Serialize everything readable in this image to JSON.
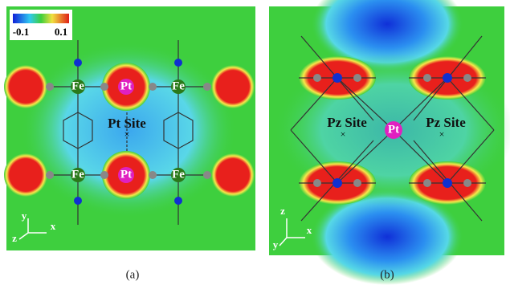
{
  "figure": {
    "colorbar": {
      "min_label": "-0.1",
      "max_label": "0.1"
    },
    "panel_a": {
      "caption": "(a)",
      "atoms": [
        "Fe",
        "Pt",
        "Fe",
        "Fe",
        "Pt",
        "Fe"
      ],
      "site_label": "Pt Site",
      "site_marker": "×",
      "axes": [
        "y",
        "z",
        "x"
      ]
    },
    "panel_b": {
      "caption": "(b)",
      "atom": "Pt",
      "site_labels": [
        "Pz Site",
        "Pz Site"
      ],
      "site_markers": [
        "×",
        "×"
      ],
      "axes": [
        "z",
        "y",
        "x"
      ]
    }
  }
}
